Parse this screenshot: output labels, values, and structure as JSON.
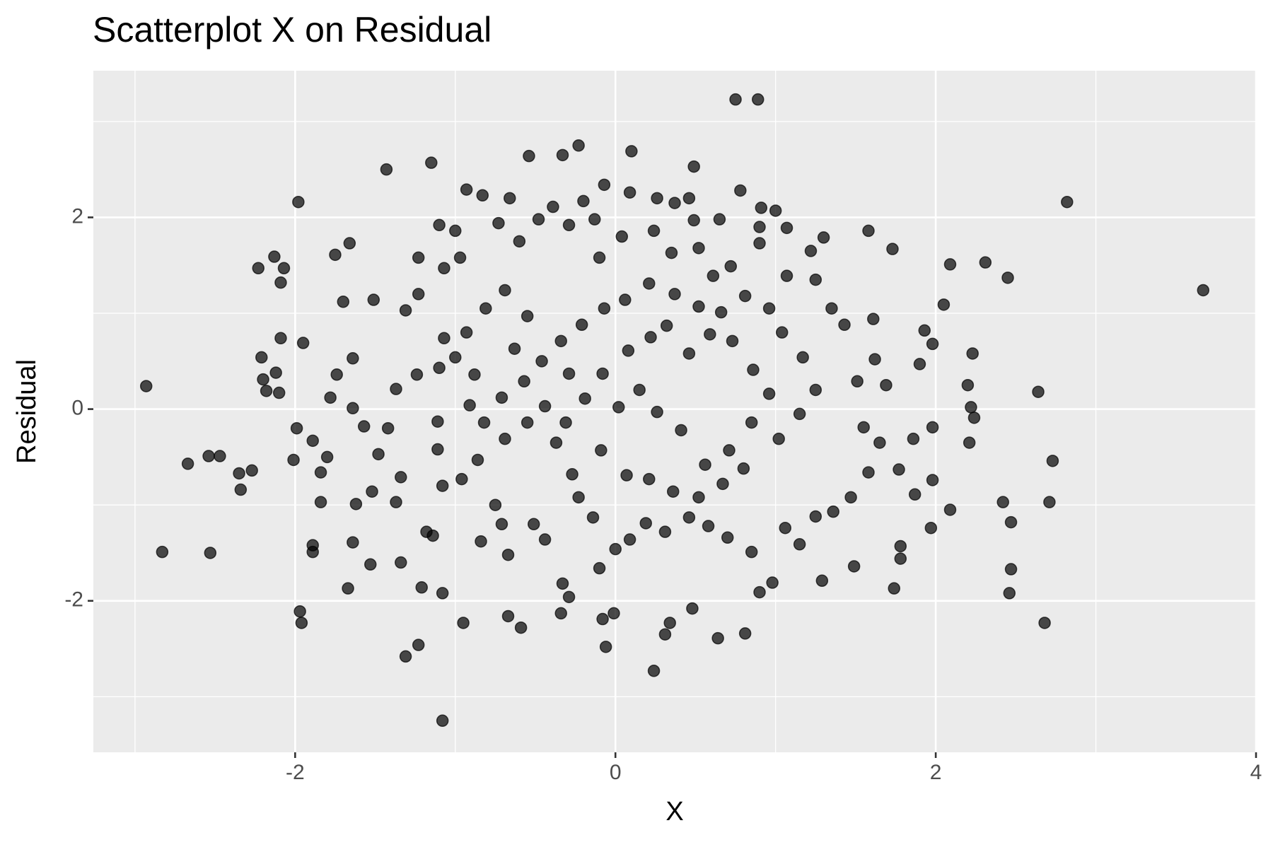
{
  "chart_data": {
    "type": "scatter",
    "title": "Scatterplot X on Residual",
    "x_label": "X",
    "y_label": "Residual",
    "color": "#000000",
    "alpha": 0.7,
    "grid": true,
    "background": "#ebebeb",
    "xlim": [
      -3.26,
      4.0
    ],
    "ylim": [
      -3.58,
      3.53
    ],
    "xticks": [
      -2,
      0,
      2,
      4
    ],
    "yticks": [
      -2,
      0,
      2
    ],
    "x_minor": [
      -3,
      -1,
      1,
      3
    ],
    "y_minor": [
      -3,
      -1,
      1,
      3
    ],
    "x": [
      -2.93,
      -2.83,
      -2.67,
      -2.54,
      -2.53,
      -2.47,
      -2.35,
      -2.34,
      -2.27,
      -2.23,
      -2.21,
      -2.2,
      -2.18,
      -2.13,
      -2.12,
      -2.1,
      -2.09,
      -2.09,
      -2.07,
      -1.98,
      -2.01,
      -1.97,
      -1.96,
      -1.95,
      -1.43,
      -1.15,
      -1.08,
      -1.31,
      -1.23,
      0.75,
      0.89,
      2.82,
      3.67,
      2.31,
      2.45,
      2.09,
      2.05,
      2.46,
      2.47,
      2.47,
      2.42,
      2.68,
      2.71,
      2.73,
      2.64,
      2.23,
      2.22,
      2.24,
      2.2,
      2.21,
      2.09,
      1.97,
      1.98,
      1.98,
      1.98,
      1.93,
      1.9,
      1.86,
      1.87,
      1.74,
      1.78,
      1.78,
      1.77,
      1.73,
      1.58,
      0.24,
      -0.06,
      -0.08,
      -0.01,
      -0.23,
      -0.33,
      -0.54,
      0.1,
      0.49,
      -0.07,
      0.09,
      0.78,
      -0.93,
      -0.83,
      -0.66,
      -0.2,
      0.26,
      0.37,
      0.46,
      0.49,
      0.65,
      0.91,
      1.0,
      1.07,
      1.3,
      0.64,
      0.81,
      0.34,
      0.31,
      0.48,
      -0.34,
      -0.59,
      -0.67,
      -0.95,
      -1.21,
      -1.08,
      -1.67,
      -1.89,
      -1.89,
      0.9,
      0.98,
      1.29,
      1.49,
      0.9,
      -1.31,
      -1.51,
      -1.66,
      -1.75,
      -1.7,
      -1.64,
      -1.74,
      -1.64,
      -1.78,
      -1.8,
      -1.84,
      -1.84,
      -1.62,
      -1.52,
      -1.53,
      -1.64,
      -1.37,
      -1.34,
      -1.42,
      -1.37,
      -1.24,
      -1.23,
      -1.23,
      -1.1,
      -1.0,
      -0.97,
      -1.07,
      -1.07,
      -1.1,
      -1.11,
      -1.11,
      -1.08,
      -1.18,
      -1.14,
      -1.34,
      -0.91,
      -0.86,
      -0.75,
      -0.84,
      -0.71,
      -0.67,
      -0.51,
      -0.44,
      -0.33,
      -0.29,
      -0.63,
      -0.73,
      -0.6,
      -0.48,
      -0.39,
      -0.29,
      -0.13,
      -0.1,
      0.04,
      0.24,
      0.35,
      0.52,
      0.61,
      0.72,
      0.9,
      1.07,
      1.22,
      1.25,
      1.35,
      1.43,
      1.61,
      1.62,
      1.51,
      1.69,
      1.55,
      1.65,
      1.58,
      1.47,
      1.36,
      1.25,
      1.15,
      1.06,
      0.85,
      0.7,
      0.58,
      0.46,
      0.31,
      0.19,
      0.09,
      0.0,
      -0.1,
      -0.14,
      -0.23,
      -0.27,
      -0.37,
      -0.31,
      -0.19,
      -0.08,
      0.08,
      0.22,
      0.32,
      0.46,
      0.59,
      0.73,
      0.86,
      0.96,
      0.85,
      0.71,
      0.56,
      0.41,
      0.26,
      0.15,
      0.02,
      -0.09,
      0.07,
      0.21,
      0.36,
      0.52,
      0.67,
      0.8,
      1.02,
      1.15,
      1.25,
      1.17,
      1.04,
      0.96,
      0.81,
      0.66,
      0.52,
      0.37,
      0.21,
      0.06,
      -0.07,
      -0.21,
      -0.34,
      -0.46,
      -0.57,
      -0.71,
      -0.82,
      -0.69,
      -0.55,
      -0.44,
      -0.29,
      -0.55,
      -0.69,
      -0.81,
      -0.93,
      -1.0,
      -0.88,
      -0.96,
      -1.48,
      -1.57,
      -1.99,
      -1.89
    ],
    "values": [
      0.24,
      -1.49,
      -0.57,
      -0.49,
      -1.5,
      -0.49,
      -0.67,
      -0.84,
      -0.64,
      1.47,
      0.54,
      0.31,
      0.19,
      1.59,
      0.38,
      0.17,
      1.32,
      0.74,
      1.47,
      2.16,
      -0.53,
      -2.11,
      -2.23,
      0.69,
      2.5,
      2.57,
      -3.25,
      -2.58,
      -2.46,
      3.23,
      3.23,
      2.16,
      1.24,
      1.53,
      1.37,
      1.51,
      1.09,
      -1.92,
      -1.67,
      -1.18,
      -0.97,
      -2.23,
      -0.97,
      -0.54,
      0.18,
      0.58,
      0.02,
      -0.09,
      0.25,
      -0.35,
      -1.05,
      -1.24,
      -0.74,
      -0.19,
      0.68,
      0.82,
      0.47,
      -0.31,
      -0.89,
      -1.87,
      -1.56,
      -1.43,
      -0.63,
      1.67,
      1.86,
      -2.73,
      -2.48,
      -2.19,
      -2.13,
      2.75,
      2.65,
      2.64,
      2.69,
      2.53,
      2.34,
      2.26,
      2.28,
      2.29,
      2.23,
      2.2,
      2.17,
      2.2,
      2.15,
      2.2,
      1.97,
      1.98,
      2.1,
      2.07,
      1.89,
      1.79,
      -2.39,
      -2.34,
      -2.23,
      -2.35,
      -2.08,
      -2.13,
      -2.28,
      -2.16,
      -2.23,
      -1.86,
      -1.92,
      -1.87,
      -1.49,
      -1.42,
      -1.91,
      -1.81,
      -1.79,
      -1.64,
      1.9,
      1.03,
      1.14,
      1.73,
      1.61,
      1.12,
      0.53,
      0.36,
      0.01,
      0.12,
      -0.5,
      -0.66,
      -0.97,
      -0.99,
      -0.86,
      -1.62,
      -1.39,
      -0.97,
      -0.71,
      -0.2,
      0.21,
      0.36,
      1.2,
      1.58,
      1.92,
      1.86,
      1.58,
      1.47,
      0.74,
      0.43,
      -0.13,
      -0.42,
      -0.8,
      -1.28,
      -1.32,
      -1.6,
      0.04,
      -0.53,
      -1.0,
      -1.38,
      -1.2,
      -1.52,
      -1.2,
      -1.36,
      -1.82,
      -1.96,
      0.63,
      1.94,
      1.75,
      1.98,
      2.11,
      1.92,
      1.98,
      1.58,
      1.8,
      1.86,
      1.63,
      1.68,
      1.39,
      1.49,
      1.73,
      1.39,
      1.65,
      1.35,
      1.05,
      0.88,
      0.94,
      0.52,
      0.29,
      0.25,
      -0.19,
      -0.35,
      -0.66,
      -0.92,
      -1.07,
      -1.12,
      -1.41,
      -1.24,
      -1.49,
      -1.34,
      -1.22,
      -1.13,
      -1.28,
      -1.19,
      -1.36,
      -1.46,
      -1.66,
      -1.13,
      -0.92,
      -0.68,
      -0.35,
      -0.14,
      0.11,
      0.37,
      0.61,
      0.75,
      0.87,
      0.58,
      0.78,
      0.71,
      0.41,
      0.16,
      -0.14,
      -0.43,
      -0.58,
      -0.22,
      -0.03,
      0.2,
      0.02,
      -0.43,
      -0.69,
      -0.73,
      -0.86,
      -0.92,
      -0.78,
      -0.62,
      -0.31,
      -0.05,
      0.2,
      0.54,
      0.8,
      1.05,
      1.18,
      1.01,
      1.07,
      1.2,
      1.31,
      1.14,
      1.05,
      0.88,
      0.71,
      0.5,
      0.29,
      0.12,
      -0.14,
      -0.31,
      -0.14,
      0.03,
      0.37,
      0.97,
      1.24,
      1.05,
      0.8,
      0.54,
      0.36,
      -0.73,
      -0.47,
      -0.18,
      -0.2,
      -0.33
    ]
  }
}
